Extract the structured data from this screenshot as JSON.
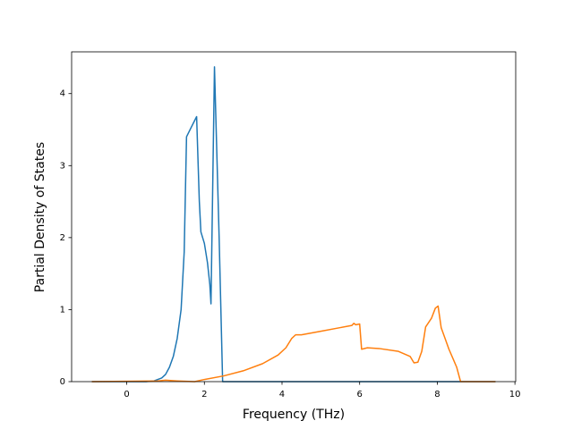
{
  "chart_data": {
    "type": "line",
    "x_label": "Frequency (THz)",
    "y_label": "Partial Density of States",
    "xlim": [
      -1.42,
      10.02
    ],
    "ylim": [
      0,
      4.58
    ],
    "xticks": [
      0,
      2,
      4,
      6,
      8,
      10
    ],
    "yticks": [
      0,
      1,
      2,
      3,
      4
    ],
    "series": [
      {
        "color": "#1f77b4",
        "x": [
          -0.9,
          0.5,
          0.7,
          0.9,
          1.0,
          1.1,
          1.2,
          1.3,
          1.4,
          1.48,
          1.54,
          1.65,
          1.8,
          1.87,
          1.91,
          2.0,
          2.08,
          2.14,
          2.17,
          2.26,
          2.38,
          2.47,
          9.5
        ],
        "values": [
          0,
          0,
          0.01,
          0.05,
          0.1,
          0.2,
          0.35,
          0.6,
          1.0,
          1.8,
          3.4,
          3.52,
          3.68,
          2.5,
          2.08,
          1.92,
          1.65,
          1.35,
          1.08,
          4.37,
          2.0,
          0,
          0
        ]
      },
      {
        "color": "#ff7f0e",
        "x": [
          -0.9,
          0.8,
          1.0,
          1.3,
          1.75,
          2.0,
          2.5,
          3.0,
          3.5,
          3.9,
          4.1,
          4.25,
          4.35,
          4.5,
          5.0,
          5.5,
          5.8,
          5.85,
          5.9,
          6.0,
          6.05,
          6.2,
          6.5,
          7.0,
          7.3,
          7.4,
          7.5,
          7.6,
          7.7,
          7.85,
          7.95,
          8.02,
          8.1,
          8.3,
          8.5,
          8.6,
          9.5
        ],
        "values": [
          0,
          0.01,
          0.02,
          0.01,
          0,
          0.03,
          0.08,
          0.15,
          0.25,
          0.37,
          0.47,
          0.6,
          0.65,
          0.65,
          0.7,
          0.75,
          0.78,
          0.81,
          0.79,
          0.8,
          0.45,
          0.47,
          0.46,
          0.42,
          0.35,
          0.26,
          0.27,
          0.42,
          0.76,
          0.88,
          1.02,
          1.05,
          0.75,
          0.45,
          0.2,
          0,
          0
        ]
      }
    ]
  }
}
